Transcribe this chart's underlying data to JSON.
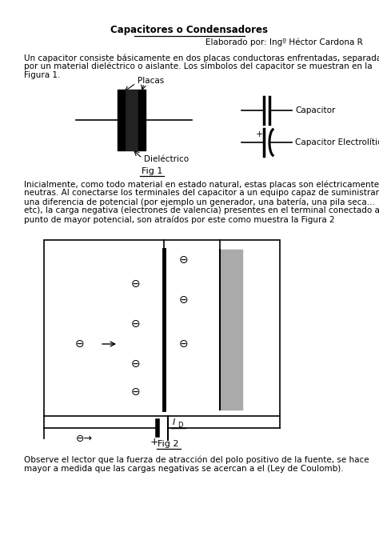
{
  "title": "Capacitores o Condensadores",
  "subtitle": "Elaborado por: Ingº Héctor Cardona R",
  "para1_lines": [
    "Un capacitor consiste básicamente en dos placas conductoras enfrentadas, separadas",
    "por un material dieléctrico o aislante. Los símbolos del capacitor se muestran en la",
    "Figura 1."
  ],
  "fig1_label": "Fig 1",
  "para2_lines": [
    "Inicialmente, como todo material en estado natural, estas placas son eléctricamente",
    "neutras. Al conectarse los terminales del capacitor a un equipo capaz de suministrar",
    "una diferencia de potencial (por ejemplo un generador, una batería, una pila seca...",
    "etc), la carga negativa (electrones de valencia) presentes en el terminal conectado al",
    "punto de mayor potencial, son atraídos por este como muestra la Figura 2"
  ],
  "fig2_label": "Fig 2",
  "para3_lines": [
    "Observe el lector que la fuerza de atracción del polo positivo de la fuente, se hace",
    "mayor a medida que las cargas negativas se acercan a el (Ley de Coulomb)."
  ],
  "bg_color": "#ffffff",
  "text_color": "#000000",
  "font_size": 7.5,
  "title_font_size": 8.5
}
